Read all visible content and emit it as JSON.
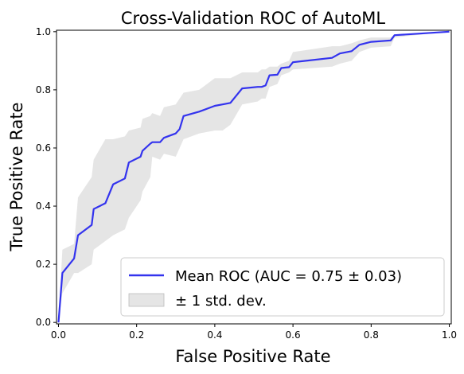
{
  "chart_data": {
    "type": "line",
    "title": "Cross-Validation ROC of AutoML",
    "xlabel": "False Positive Rate",
    "ylabel": "True Positive Rate",
    "xlim": [
      -0.005,
      1.005
    ],
    "ylim": [
      -0.005,
      1.005
    ],
    "xticks": [
      "0.0",
      "0.2",
      "0.4",
      "0.6",
      "0.8",
      "1.0"
    ],
    "yticks": [
      "0.0",
      "0.2",
      "0.4",
      "0.6",
      "0.8",
      "1.0"
    ],
    "grid": false,
    "legend_position": "lower-right",
    "series": [
      {
        "name": "Mean ROC (AUC = 0.75 ± 0.03)",
        "color": "#3333ee",
        "x": [
          0.0,
          0.01,
          0.04,
          0.05,
          0.085,
          0.09,
          0.12,
          0.14,
          0.17,
          0.18,
          0.21,
          0.215,
          0.235,
          0.24,
          0.26,
          0.27,
          0.3,
          0.31,
          0.32,
          0.36,
          0.4,
          0.42,
          0.44,
          0.47,
          0.51,
          0.52,
          0.53,
          0.54,
          0.56,
          0.57,
          0.59,
          0.6,
          0.7,
          0.72,
          0.75,
          0.77,
          0.8,
          0.85,
          0.86,
          1.0
        ],
        "y": [
          0.0,
          0.17,
          0.22,
          0.3,
          0.335,
          0.39,
          0.41,
          0.475,
          0.495,
          0.55,
          0.57,
          0.59,
          0.615,
          0.62,
          0.62,
          0.635,
          0.65,
          0.665,
          0.71,
          0.725,
          0.745,
          0.75,
          0.755,
          0.805,
          0.81,
          0.81,
          0.815,
          0.85,
          0.852,
          0.875,
          0.878,
          0.895,
          0.91,
          0.925,
          0.933,
          0.955,
          0.965,
          0.97,
          0.988,
          1.0
        ]
      }
    ],
    "band": {
      "name": "± 1 std. dev.",
      "color": "#cccccc",
      "x": [
        0.0,
        0.01,
        0.04,
        0.05,
        0.085,
        0.09,
        0.12,
        0.14,
        0.17,
        0.18,
        0.21,
        0.215,
        0.235,
        0.24,
        0.26,
        0.27,
        0.3,
        0.31,
        0.32,
        0.36,
        0.4,
        0.42,
        0.44,
        0.47,
        0.51,
        0.52,
        0.53,
        0.54,
        0.56,
        0.57,
        0.59,
        0.6,
        0.7,
        0.72,
        0.75,
        0.77,
        0.8,
        0.85,
        0.86,
        1.0
      ],
      "upper": [
        0.01,
        0.25,
        0.27,
        0.43,
        0.5,
        0.56,
        0.63,
        0.63,
        0.64,
        0.66,
        0.67,
        0.7,
        0.71,
        0.72,
        0.71,
        0.74,
        0.75,
        0.77,
        0.79,
        0.8,
        0.84,
        0.84,
        0.84,
        0.86,
        0.86,
        0.87,
        0.87,
        0.88,
        0.88,
        0.89,
        0.9,
        0.93,
        0.95,
        0.95,
        0.96,
        0.97,
        0.98,
        0.98,
        0.99,
        1.0
      ],
      "lower": [
        0.0,
        0.1,
        0.17,
        0.17,
        0.2,
        0.25,
        0.28,
        0.3,
        0.32,
        0.36,
        0.42,
        0.45,
        0.5,
        0.57,
        0.56,
        0.58,
        0.57,
        0.6,
        0.63,
        0.65,
        0.66,
        0.66,
        0.68,
        0.75,
        0.76,
        0.77,
        0.77,
        0.81,
        0.82,
        0.85,
        0.86,
        0.87,
        0.88,
        0.89,
        0.9,
        0.93,
        0.945,
        0.95,
        0.98,
        1.0
      ]
    }
  }
}
